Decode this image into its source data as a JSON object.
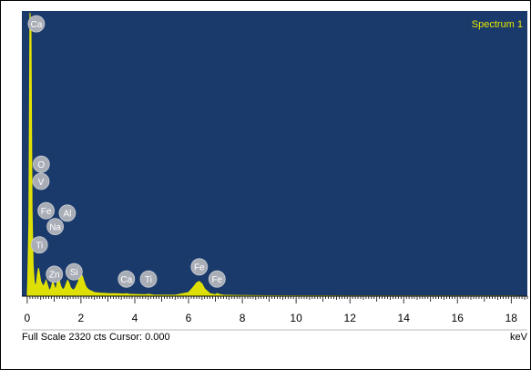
{
  "chart_data": {
    "type": "area",
    "title": "Spectrum 1",
    "xlabel": "keV",
    "xlim": [
      -0.2,
      18.6
    ],
    "ylim": [
      0,
      2320
    ],
    "xticks": [
      0,
      2,
      4,
      6,
      8,
      10,
      12,
      14,
      16,
      18
    ],
    "series": [
      {
        "name": "Spectrum 1",
        "x": [
          0.0,
          0.02,
          0.06,
          0.1,
          0.14,
          0.18,
          0.22,
          0.26,
          0.3,
          0.34,
          0.38,
          0.42,
          0.46,
          0.5,
          0.55,
          0.6,
          0.65,
          0.7,
          0.75,
          0.8,
          0.85,
          0.9,
          0.95,
          1.0,
          1.04,
          1.08,
          1.12,
          1.16,
          1.2,
          1.25,
          1.3,
          1.35,
          1.4,
          1.45,
          1.5,
          1.55,
          1.6,
          1.65,
          1.7,
          1.75,
          1.8,
          1.85,
          1.9,
          1.95,
          2.0,
          2.05,
          2.1,
          2.15,
          2.2,
          2.3,
          2.4,
          2.5,
          2.7,
          3.0,
          3.3,
          3.6,
          3.69,
          3.8,
          4.0,
          4.4,
          4.51,
          4.7,
          5.0,
          5.5,
          6.0,
          6.2,
          6.3,
          6.4,
          6.5,
          6.6,
          6.8,
          7.0,
          7.06,
          7.15,
          7.3,
          8.0,
          9.0,
          10.0,
          11.0,
          12.0,
          14.0,
          16.0,
          18.0,
          18.6
        ],
        "y": [
          0,
          150,
          600,
          2320,
          2200,
          700,
          250,
          120,
          80,
          100,
          180,
          230,
          180,
          120,
          100,
          80,
          100,
          130,
          95,
          60,
          45,
          80,
          120,
          90,
          60,
          70,
          120,
          180,
          120,
          80,
          60,
          55,
          70,
          100,
          130,
          110,
          75,
          60,
          50,
          55,
          70,
          95,
          120,
          160,
          180,
          165,
          130,
          95,
          70,
          50,
          40,
          30,
          25,
          22,
          20,
          18,
          20,
          16,
          14,
          12,
          16,
          10,
          8,
          8,
          30,
          80,
          110,
          120,
          100,
          60,
          20,
          12,
          22,
          14,
          8,
          5,
          4,
          3,
          3,
          2,
          2,
          2,
          2,
          0
        ]
      }
    ],
    "peak_labels": [
      {
        "label": "Ca",
        "x": 0.34,
        "y": 2230
      },
      {
        "label": "O",
        "x": 0.52,
        "y": 1080
      },
      {
        "label": "V",
        "x": 0.51,
        "y": 940
      },
      {
        "label": "Fe",
        "x": 0.7,
        "y": 700
      },
      {
        "label": "Al",
        "x": 1.49,
        "y": 680
      },
      {
        "label": "Na",
        "x": 1.04,
        "y": 570
      },
      {
        "label": "Ti",
        "x": 0.45,
        "y": 420
      },
      {
        "label": "Zn",
        "x": 1.01,
        "y": 180
      },
      {
        "label": "Si",
        "x": 1.74,
        "y": 200
      },
      {
        "label": "Ca",
        "x": 3.69,
        "y": 140
      },
      {
        "label": "Ti",
        "x": 4.51,
        "y": 140
      },
      {
        "label": "Fe",
        "x": 6.4,
        "y": 240
      },
      {
        "label": "Fe",
        "x": 7.06,
        "y": 140
      }
    ],
    "grid": false,
    "legend": "none"
  },
  "status": {
    "scale_text": "Full Scale 2320 cts Cursor: 0.000",
    "unit": "keV"
  },
  "colors": {
    "plot_background": "#1a3a6b",
    "spectrum": "#e8e800",
    "label_fill": "#a9adb6",
    "label_text": "#ffffff",
    "title": "#e8e800"
  }
}
